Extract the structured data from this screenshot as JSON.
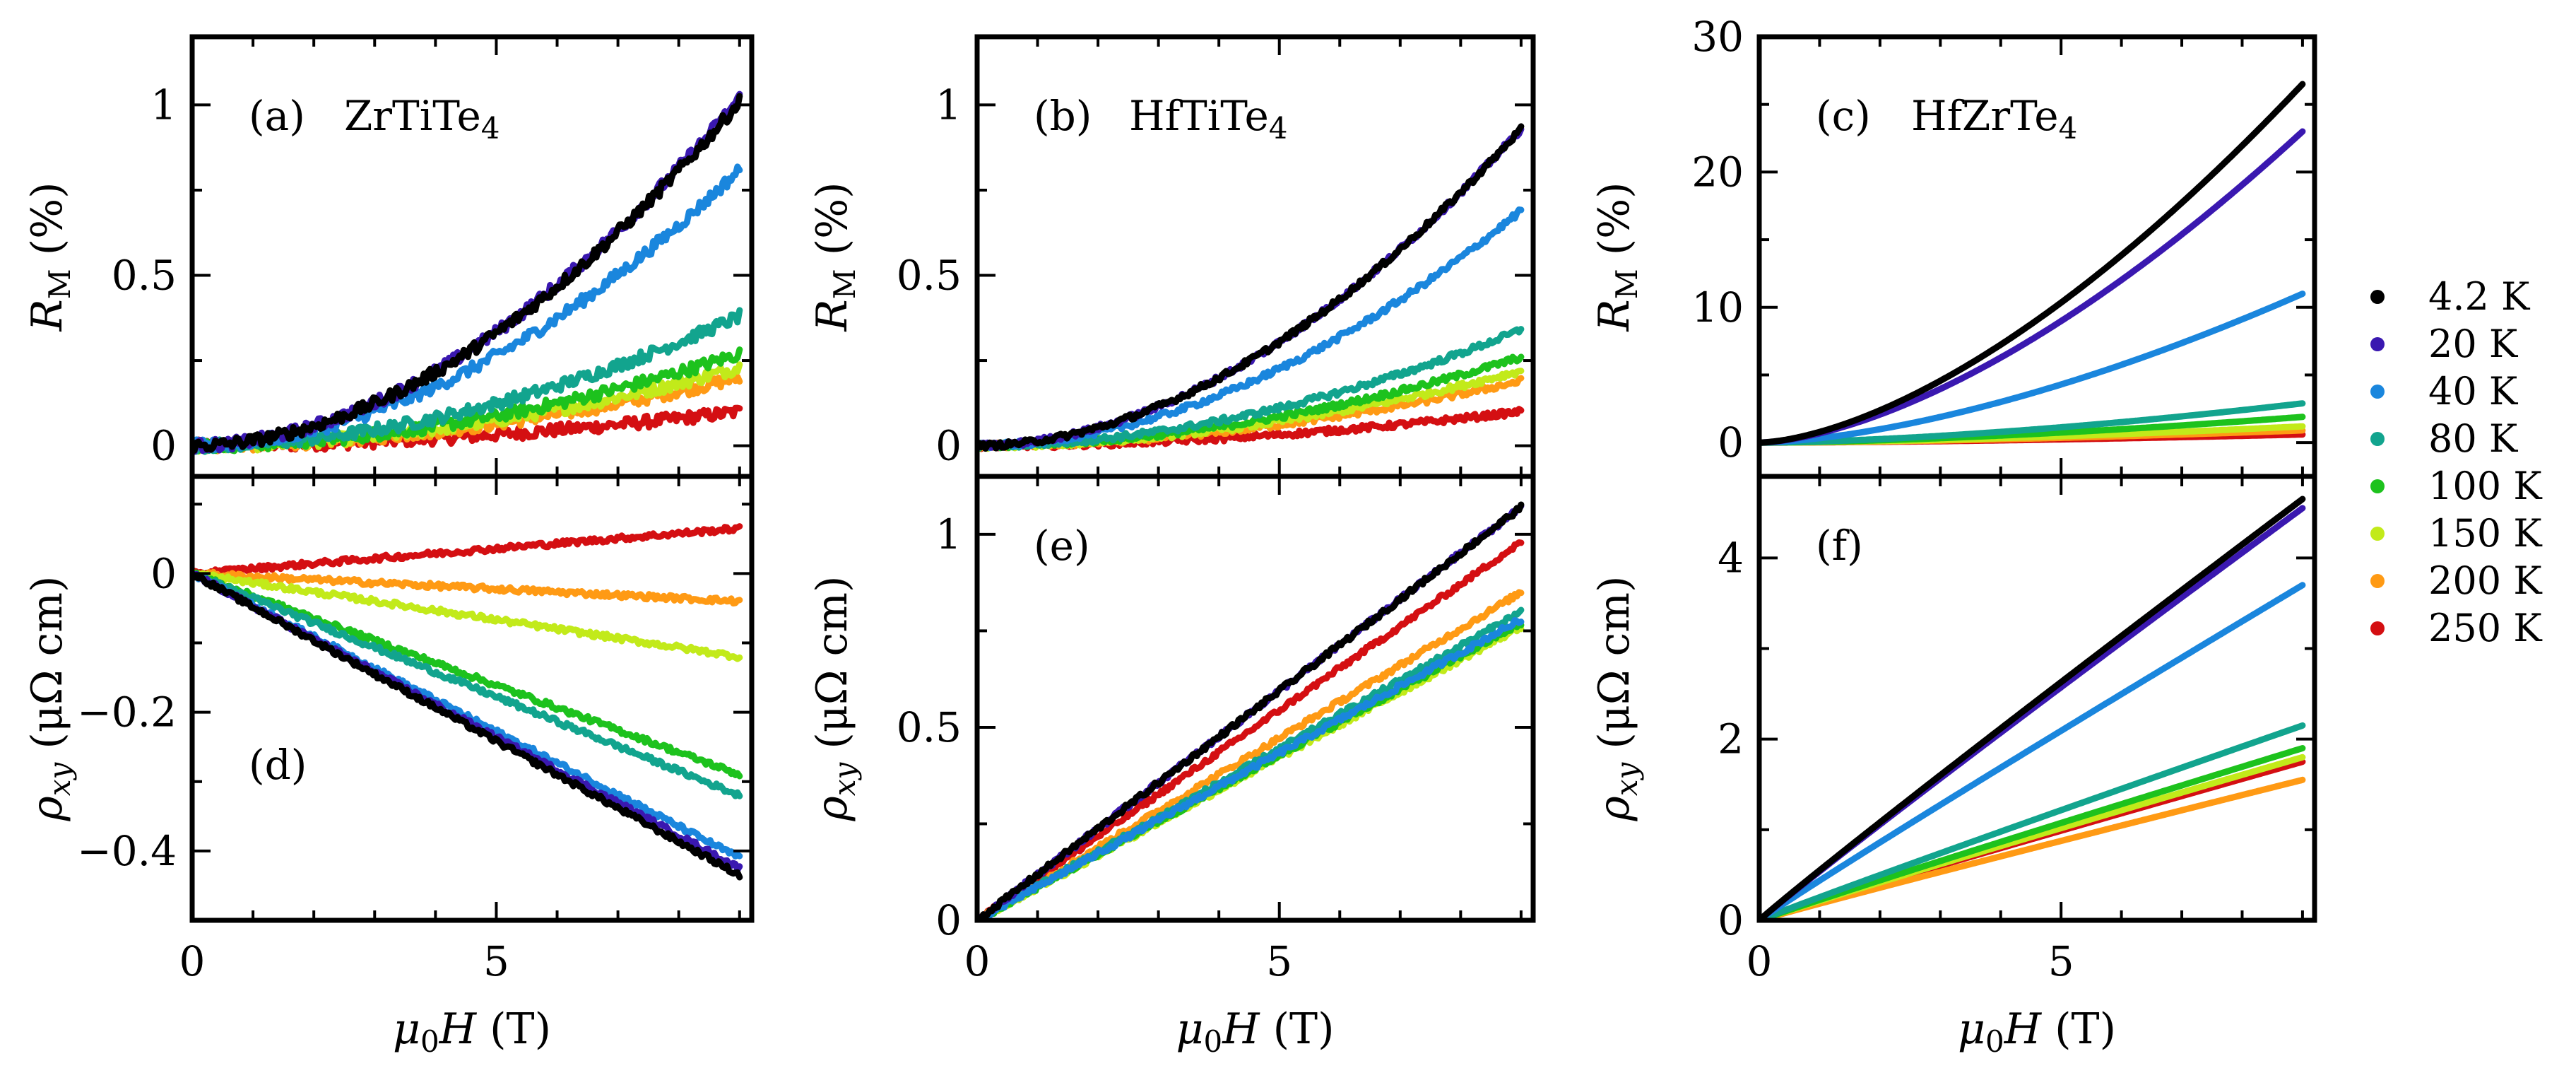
{
  "chart_data": {
    "type": "line",
    "x_label": {
      "main": "μ",
      "sub": "0",
      "tail": "H (T)"
    },
    "x_ticks": [
      0,
      5
    ],
    "xlim": [
      0,
      9.2
    ],
    "temperatures": [
      "4.2 K",
      "20 K",
      "40 K",
      "80 K",
      "100 K",
      "150 K",
      "200 K",
      "250 K"
    ],
    "colors": [
      "#000000",
      "#3a18b0",
      "#1a86dd",
      "#12a48e",
      "#1dc21d",
      "#c2ea1a",
      "#ff9a14",
      "#d40f12"
    ],
    "legend": {
      "position": "right"
    },
    "panels": [
      {
        "id": "a",
        "label": "(a)",
        "material": "ZrTiTe",
        "subscript": "4",
        "ylabel": {
          "main": "R",
          "sub": "M",
          "tail": " (%)"
        },
        "ylim": [
          -0.09,
          1.2
        ],
        "yticks": [
          0,
          0.5,
          1
        ],
        "ytick_labels": [
          "0",
          "0.5",
          "1"
        ],
        "end_values": [
          1.01,
          1.02,
          0.81,
          0.38,
          0.27,
          0.23,
          0.2,
          0.1
        ],
        "exponent": 1.9,
        "noise": 0.014
      },
      {
        "id": "b",
        "label": "(b)",
        "material": "HfTiTe",
        "subscript": "4",
        "ylabel": {
          "main": "R",
          "sub": "M",
          "tail": " (%)"
        },
        "ylim": [
          -0.09,
          1.2
        ],
        "yticks": [
          0,
          0.5,
          1
        ],
        "ytick_labels": [
          "0",
          "0.5",
          "1"
        ],
        "end_values": [
          0.93,
          0.93,
          0.69,
          0.34,
          0.26,
          0.22,
          0.19,
          0.1
        ],
        "exponent": 1.9,
        "noise": 0.007
      },
      {
        "id": "c",
        "label": "(c)",
        "material": "HfZrTe",
        "subscript": "4",
        "ylabel": {
          "main": "R",
          "sub": "M",
          "tail": " (%)"
        },
        "ylim": [
          -2.5,
          30
        ],
        "yticks": [
          0,
          10,
          20,
          30
        ],
        "ytick_labels": [
          "0",
          "10",
          "20",
          "30"
        ],
        "end_values": [
          26.5,
          23.0,
          11.0,
          2.9,
          1.9,
          1.2,
          0.9,
          0.6
        ],
        "exponent": 1.6,
        "noise": 0.0
      },
      {
        "id": "d",
        "label": "(d)",
        "material": "",
        "subscript": "",
        "ylabel": {
          "main": "ρ",
          "sub": "xy",
          "tail": " (μΩ cm)"
        },
        "ylim": [
          -0.5,
          0.14
        ],
        "yticks": [
          -0.4,
          -0.2,
          0
        ],
        "ytick_labels": [
          "−0.4",
          "−0.2",
          "0"
        ],
        "end_values": [
          -0.435,
          -0.425,
          -0.41,
          -0.32,
          -0.29,
          -0.12,
          -0.04,
          0.065
        ],
        "exponent": 1.0,
        "noise": 0.006
      },
      {
        "id": "e",
        "label": "(e)",
        "material": "",
        "subscript": "",
        "ylabel": {
          "main": "ρ",
          "sub": "xy",
          "tail": " (μΩ cm)"
        },
        "ylim": [
          0,
          1.15
        ],
        "yticks": [
          0,
          0.5,
          1
        ],
        "ytick_labels": [
          "0",
          "0.5",
          "1"
        ],
        "end_values": [
          1.07,
          1.07,
          0.78,
          0.8,
          0.77,
          0.76,
          0.85,
          0.98
        ],
        "exponent": 1.0,
        "noise": 0.006
      },
      {
        "id": "f",
        "label": "(f)",
        "material": "",
        "subscript": "",
        "ylabel": {
          "main": "ρ",
          "sub": "xy",
          "tail": " (μΩ cm)"
        },
        "ylim": [
          0,
          4.9
        ],
        "yticks": [
          0,
          2,
          4
        ],
        "ytick_labels": [
          "0",
          "2",
          "4"
        ],
        "end_values": [
          4.65,
          4.55,
          3.7,
          2.15,
          1.9,
          1.8,
          1.55,
          1.75
        ],
        "exponent": 0.97,
        "noise": 0.0
      }
    ]
  }
}
